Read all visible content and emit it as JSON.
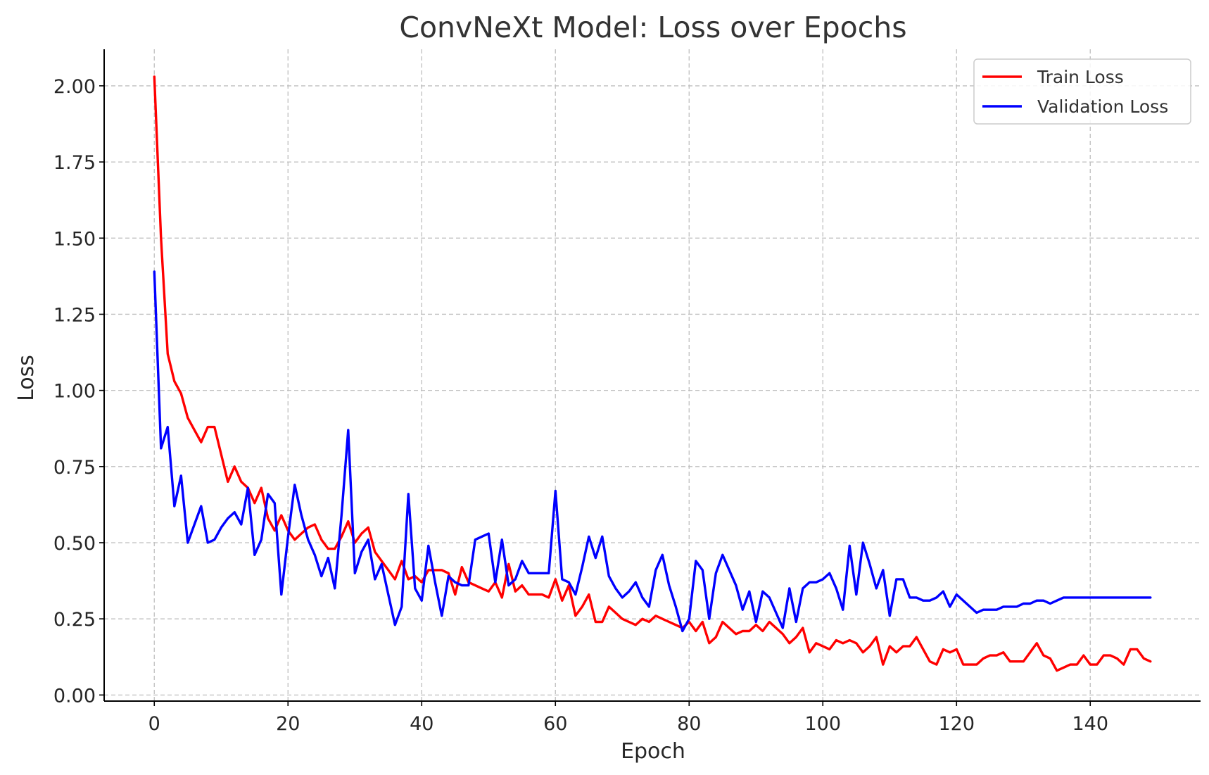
{
  "chart_data": {
    "type": "line",
    "title": "ConvNeXt Model: Loss over Epochs",
    "xlabel": "Epoch",
    "ylabel": "Loss",
    "xlim": [
      -7.5,
      156.5
    ],
    "ylim": [
      -0.02,
      2.12
    ],
    "xticks": [
      0,
      20,
      40,
      60,
      80,
      100,
      120,
      140
    ],
    "xtick_labels": [
      "0",
      "20",
      "40",
      "60",
      "80",
      "100",
      "120",
      "140"
    ],
    "yticks": [
      0.0,
      0.25,
      0.5,
      0.75,
      1.0,
      1.25,
      1.5,
      1.75,
      2.0
    ],
    "ytick_labels": [
      "0.00",
      "0.25",
      "0.50",
      "0.75",
      "1.00",
      "1.25",
      "1.50",
      "1.75",
      "2.00"
    ],
    "grid": true,
    "legend_position": "top-right",
    "series": [
      {
        "name": "Train Loss",
        "color": "#ff0000",
        "values": [
          2.03,
          1.5,
          1.12,
          1.03,
          0.99,
          0.91,
          0.87,
          0.83,
          0.88,
          0.88,
          0.79,
          0.7,
          0.75,
          0.7,
          0.68,
          0.63,
          0.68,
          0.58,
          0.54,
          0.59,
          0.54,
          0.51,
          0.53,
          0.55,
          0.56,
          0.51,
          0.48,
          0.48,
          0.52,
          0.57,
          0.5,
          0.53,
          0.55,
          0.47,
          0.44,
          0.41,
          0.38,
          0.44,
          0.38,
          0.39,
          0.37,
          0.41,
          0.41,
          0.41,
          0.4,
          0.33,
          0.42,
          0.37,
          0.36,
          0.35,
          0.34,
          0.37,
          0.32,
          0.43,
          0.34,
          0.36,
          0.33,
          0.33,
          0.33,
          0.32,
          0.38,
          0.31,
          0.36,
          0.26,
          0.29,
          0.33,
          0.24,
          0.24,
          0.29,
          0.27,
          0.25,
          0.24,
          0.23,
          0.25,
          0.24,
          0.26,
          0.25,
          0.24,
          0.23,
          0.22,
          0.24,
          0.21,
          0.24,
          0.17,
          0.19,
          0.24,
          0.22,
          0.2,
          0.21,
          0.21,
          0.23,
          0.21,
          0.24,
          0.22,
          0.2,
          0.17,
          0.19,
          0.22,
          0.14,
          0.17,
          0.16,
          0.15,
          0.18,
          0.17,
          0.18,
          0.17,
          0.14,
          0.16,
          0.19,
          0.1,
          0.16,
          0.14,
          0.16,
          0.16,
          0.19,
          0.15,
          0.11,
          0.1,
          0.15,
          0.14,
          0.15,
          0.1,
          0.1,
          0.1,
          0.12,
          0.13,
          0.13,
          0.14,
          0.11,
          0.11,
          0.11,
          0.14,
          0.17,
          0.13,
          0.12,
          0.08,
          0.09,
          0.1,
          0.1,
          0.13,
          0.1,
          0.1,
          0.13,
          0.13,
          0.12,
          0.1,
          0.15,
          0.15,
          0.12,
          0.11
        ]
      },
      {
        "name": "Validation Loss",
        "color": "#0000ff",
        "values": [
          1.39,
          0.81,
          0.88,
          0.62,
          0.72,
          0.5,
          0.56,
          0.62,
          0.5,
          0.51,
          0.55,
          0.58,
          0.6,
          0.56,
          0.68,
          0.46,
          0.51,
          0.66,
          0.63,
          0.33,
          0.52,
          0.69,
          0.59,
          0.51,
          0.46,
          0.39,
          0.45,
          0.35,
          0.59,
          0.87,
          0.4,
          0.47,
          0.51,
          0.38,
          0.43,
          0.33,
          0.23,
          0.29,
          0.66,
          0.35,
          0.31,
          0.49,
          0.37,
          0.26,
          0.39,
          0.37,
          0.36,
          0.36,
          0.51,
          0.52,
          0.53,
          0.37,
          0.51,
          0.36,
          0.38,
          0.44,
          0.4,
          0.4,
          0.4,
          0.4,
          0.67,
          0.38,
          0.37,
          0.33,
          0.42,
          0.52,
          0.45,
          0.52,
          0.39,
          0.35,
          0.32,
          0.34,
          0.37,
          0.32,
          0.29,
          0.41,
          0.46,
          0.36,
          0.29,
          0.21,
          0.25,
          0.44,
          0.41,
          0.25,
          0.4,
          0.46,
          0.41,
          0.36,
          0.28,
          0.34,
          0.24,
          0.34,
          0.32,
          0.27,
          0.22,
          0.35,
          0.24,
          0.35,
          0.37,
          0.37,
          0.38,
          0.4,
          0.35,
          0.28,
          0.49,
          0.33,
          0.5,
          0.43,
          0.35,
          0.41,
          0.26,
          0.38,
          0.38,
          0.32,
          0.32,
          0.31,
          0.31,
          0.32,
          0.34,
          0.29,
          0.33,
          0.31,
          0.29,
          0.27,
          0.28,
          0.28,
          0.28,
          0.29,
          0.29,
          0.29,
          0.3,
          0.3,
          0.31,
          0.31,
          0.3,
          0.31,
          0.32,
          0.32,
          0.32,
          0.32,
          0.32,
          0.32,
          0.32,
          0.32,
          0.32,
          0.32,
          0.32,
          0.32,
          0.32,
          0.32
        ]
      }
    ]
  }
}
